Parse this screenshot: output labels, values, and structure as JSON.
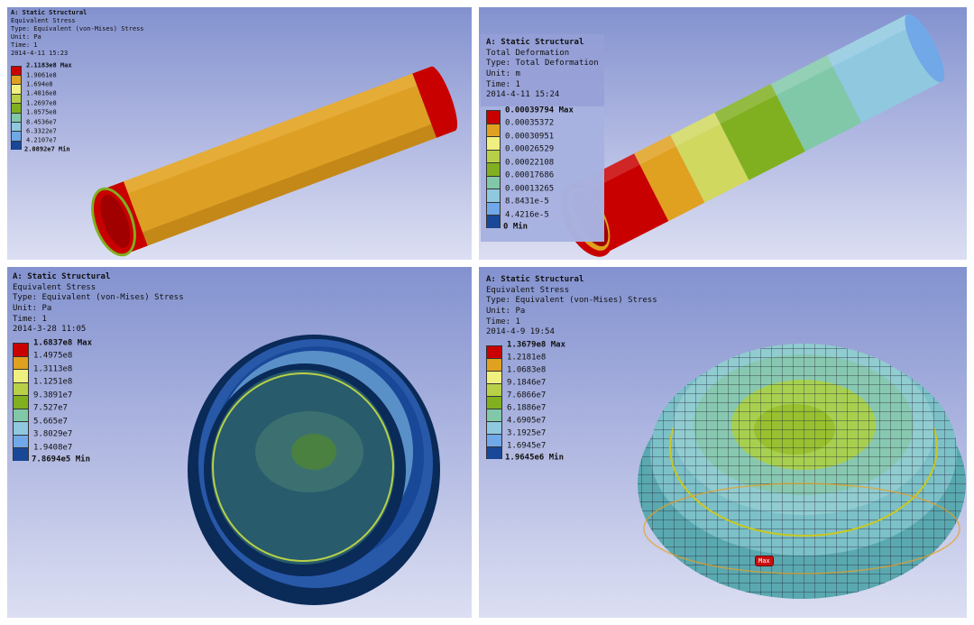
{
  "colors": [
    "#c80000",
    "#e0a020",
    "#f0f080",
    "#b8d048",
    "#80b020",
    "#80c8a8",
    "#90c8e0",
    "#70a8e8",
    "#1a4898"
  ],
  "panels": [
    {
      "title": "A: Static Structural",
      "result": "Equivalent Stress",
      "type": "Type: Equivalent (von-Mises) Stress",
      "unit": "Unit: Pa",
      "time": "Time: 1",
      "date": "2014-4-11 15:23",
      "legend": [
        "2.1183e8 Max",
        "1.9061e8",
        "1.694e8",
        "1.4816e8",
        "1.2697e8",
        "1.0575e8",
        "8.4536e7",
        "6.3322e7",
        "4.2107e7",
        "2.0892e7 Min"
      ]
    },
    {
      "title": "A: Static Structural",
      "result": "Total Deformation",
      "type": "Type: Total Deformation",
      "unit": "Unit: m",
      "time": "Time: 1",
      "date": "2014-4-11 15:24",
      "legend": [
        "0.00039794 Max",
        "0.00035372",
        "0.00030951",
        "0.00026529",
        "0.00022108",
        "0.00017686",
        "0.00013265",
        "8.8431e-5",
        "4.4216e-5",
        "0 Min"
      ]
    },
    {
      "title": "A: Static Structural",
      "result": "Equivalent Stress",
      "type": "Type: Equivalent (von-Mises) Stress",
      "unit": "Unit: Pa",
      "time": "Time: 1",
      "date": "2014-3-28 11:05",
      "legend": [
        "1.6837e8 Max",
        "1.4975e8",
        "1.3113e8",
        "1.1251e8",
        "9.3891e7",
        "7.527e7",
        "5.665e7",
        "3.8029e7",
        "1.9408e7",
        "7.8694e5 Min"
      ]
    },
    {
      "title": "A: Static Structural",
      "result": "Equivalent Stress",
      "type": "Type: Equivalent (von-Mises) Stress",
      "unit": "Unit: Pa",
      "time": "Time: 1",
      "date": "2014-4-9 19:54",
      "legend": [
        "1.3679e8 Max",
        "1.2181e8",
        "1.0683e8",
        "9.1846e7",
        "7.6866e7",
        "6.1886e7",
        "4.6905e7",
        "3.1925e7",
        "1.6945e7",
        "1.9645e6 Min"
      ],
      "max_tag": "Max"
    }
  ]
}
